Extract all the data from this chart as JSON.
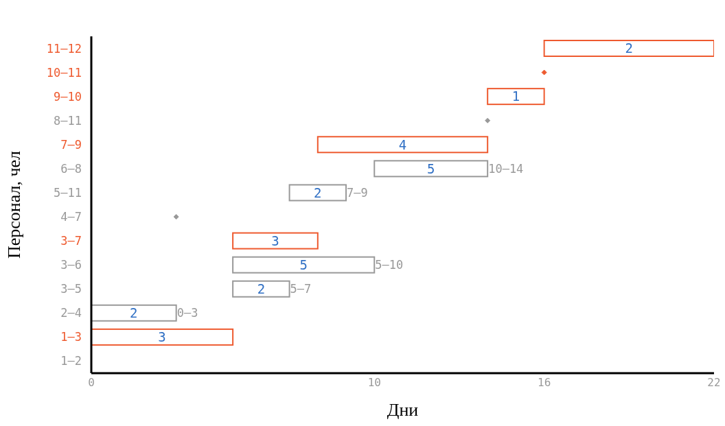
{
  "chart_data": {
    "type": "bar",
    "orientation": "horizontal",
    "xlabel": "Дни",
    "ylabel": "Персонал, чел",
    "categories": [
      "11–12",
      "10–11",
      "9–10",
      "8–11",
      "7–9",
      "6–8",
      "5–11",
      "4–7",
      "3–7",
      "3–6",
      "3–5",
      "2–4",
      "1–3",
      "1–2"
    ],
    "series": [
      {
        "base": [
          16,
          null,
          14,
          null,
          8,
          10,
          7,
          null,
          5,
          5,
          5,
          0,
          0,
          null
        ],
        "values": [
          6,
          null,
          2,
          null,
          6,
          4,
          2,
          null,
          3,
          5,
          2,
          3,
          5,
          null
        ],
        "colors": [
          "#ee5a2f",
          "#ee5a2f",
          "#ee5a2f",
          "#999999",
          "#ee5a2f",
          "#999999",
          "#999999",
          "#999999",
          "#ee5a2f",
          "#999999",
          "#999999",
          "#999999",
          "#ee5a2f",
          "#999999"
        ]
      },
      {
        "type": "scatter",
        "marker": "diamond",
        "x": [
          "10–11",
          "8–11",
          "4–7"
        ],
        "values": [
          16,
          14,
          3
        ],
        "colors": [
          "#ee5a2f",
          "#999999",
          "#999999"
        ]
      }
    ],
    "xlim": [
      0,
      22
    ],
    "xticks": [
      0,
      10,
      16,
      22
    ],
    "annotations": [
      {
        "text": "2",
        "x": 19,
        "y": "11–12"
      },
      {
        "text": "1",
        "x": 15,
        "y": "9–10"
      },
      {
        "text": "4",
        "x": 11,
        "y": "7–9"
      },
      {
        "text": "5",
        "x": 12,
        "y": "6–8"
      },
      {
        "text": "2",
        "x": 8,
        "y": "5–11"
      },
      {
        "text": "3",
        "x": 6.5,
        "y": "3–7"
      },
      {
        "text": "5",
        "x": 7.5,
        "y": "3–6"
      },
      {
        "text": "2",
        "x": 6,
        "y": "3–5"
      },
      {
        "text": "2",
        "x": 1.5,
        "y": "2–4"
      },
      {
        "text": "3",
        "x": 2.5,
        "y": "1–3"
      },
      {
        "text": "0–3",
        "x": 3,
        "y": "2–4"
      },
      {
        "text": "5–7",
        "x": 7,
        "y": "3–5"
      },
      {
        "text": "5–10",
        "x": 10,
        "y": "3–6"
      },
      {
        "text": "7–9",
        "x": 9,
        "y": "5–11"
      },
      {
        "text": "10–14",
        "x": 14,
        "y": "6–8"
      }
    ]
  }
}
